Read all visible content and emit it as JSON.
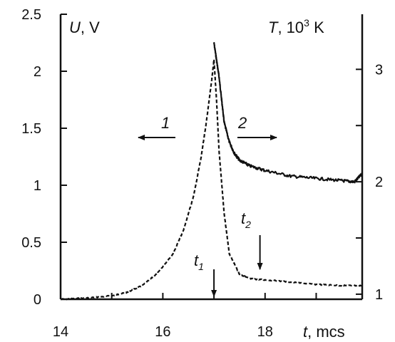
{
  "chart_data": {
    "type": "line",
    "title": "",
    "x_axis": {
      "label_var": "t",
      "label_unit": ", mcs",
      "range": [
        14,
        19.9
      ],
      "ticks": [
        14,
        16,
        18
      ],
      "tick_labels": [
        "14",
        "16",
        "18"
      ]
    },
    "y_axis_left": {
      "label_var": "U",
      "label_unit": ", V",
      "range": [
        0,
        2.5
      ],
      "ticks": [
        0,
        0.5,
        1,
        1.5,
        2,
        2.5
      ],
      "tick_labels": [
        "0",
        "0.5",
        "1",
        "1.5",
        "2",
        "2.5"
      ]
    },
    "y_axis_right": {
      "label_var": "T",
      "label_unit": ", 10",
      "label_sup": "3",
      "label_unit2": " K",
      "range": [
        0.955,
        3.49
      ],
      "ticks": [
        1,
        1.5,
        2,
        2.5,
        3
      ],
      "tick_labels": [
        "1",
        "",
        "2",
        "",
        "3"
      ]
    },
    "series": [
      {
        "name": "1",
        "axis": "left",
        "style": "dashed",
        "x": [
          14.0,
          14.5,
          15.0,
          15.3,
          15.6,
          15.9,
          16.2,
          16.4,
          16.6,
          16.75,
          16.85,
          16.95,
          17.0,
          17.05,
          17.1,
          17.2,
          17.3,
          17.5,
          17.7,
          18.0,
          18.5,
          19.0,
          19.5,
          19.9
        ],
        "y": [
          0.0,
          0.01,
          0.03,
          0.06,
          0.12,
          0.23,
          0.4,
          0.6,
          0.9,
          1.25,
          1.55,
          1.9,
          2.1,
          1.75,
          1.3,
          0.75,
          0.4,
          0.22,
          0.18,
          0.17,
          0.15,
          0.13,
          0.12,
          0.12
        ]
      },
      {
        "name": "2",
        "axis": "left",
        "style": "solid",
        "x": [
          17.0,
          17.05,
          17.1,
          17.15,
          17.2,
          17.3,
          17.4,
          17.5,
          17.7,
          18.0,
          18.5,
          19.0,
          19.5,
          19.75,
          19.9
        ],
        "y": [
          2.25,
          2.1,
          1.95,
          1.75,
          1.55,
          1.38,
          1.28,
          1.22,
          1.17,
          1.13,
          1.08,
          1.06,
          1.04,
          1.03,
          1.1
        ]
      }
    ],
    "annotations": {
      "curve1_label": "1",
      "curve2_label": "2",
      "t1_var": "t",
      "t1_sub": "1",
      "t1_x": 17.0,
      "t2_var": "t",
      "t2_sub": "2",
      "t2_x": 17.9
    }
  }
}
